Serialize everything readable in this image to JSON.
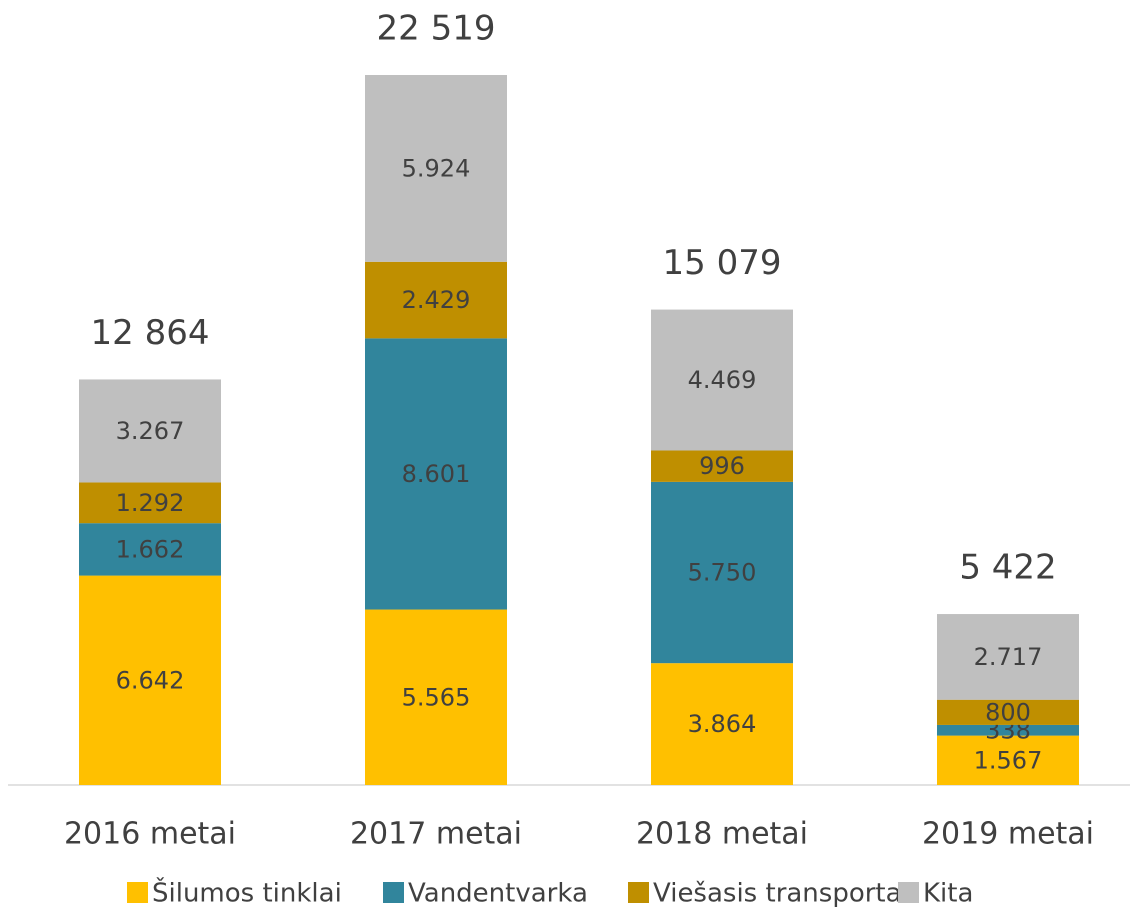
{
  "chart_data": {
    "type": "stacked_bar",
    "categories": [
      "2016 metai",
      "2017 metai",
      "2018 metai",
      "2019 metai"
    ],
    "series": [
      {
        "name": "Šilumos tinklai",
        "color": "#ffc000",
        "values": [
          6642,
          5565,
          3864,
          1567
        ],
        "value_labels": [
          "6.642",
          "5.565",
          "3.864",
          "1.567"
        ]
      },
      {
        "name": "Vandentvarka",
        "color": "#31859c",
        "values": [
          1662,
          8601,
          5750,
          338
        ],
        "value_labels": [
          "1.662",
          "8.601",
          "5.750",
          "338"
        ]
      },
      {
        "name": "Viešasis transportas",
        "color": "#bf8f00",
        "values": [
          1292,
          2429,
          996,
          800
        ],
        "value_labels": [
          "1.292",
          "2.429",
          "996",
          "800"
        ]
      },
      {
        "name": "Kita",
        "color": "#bfbfbf",
        "values": [
          3267,
          5924,
          4469,
          2717
        ],
        "value_labels": [
          "3.267",
          "5.924",
          "4.469",
          "2.717"
        ]
      }
    ],
    "totals": [
      12864,
      22519,
      15079,
      5422
    ],
    "total_labels": [
      "12 864",
      "22 519",
      "15 079",
      "5 422"
    ],
    "legend": "bottom"
  }
}
